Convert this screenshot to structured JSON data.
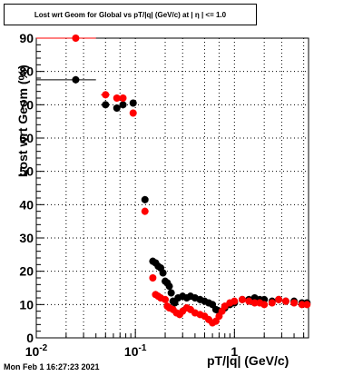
{
  "title": "Lost wrt Geom for Global vs pT/|q| (GeV/c) at |  η  | <= 1.0",
  "timestamp": "Mon Feb  1 16:27:23 2021",
  "chart_data": {
    "type": "scatter",
    "xlabel": "pT/|q| (GeV/c)",
    "ylabel": "Lost wrt Geom (%)",
    "xscale": "log",
    "xlim": [
      0.01,
      5.6
    ],
    "ylim": [
      0,
      90
    ],
    "x_tick_labels": [
      "10^-2",
      "10^-1",
      "1"
    ],
    "y_tick_labels": [
      "0",
      "10",
      "20",
      "30",
      "40",
      "50",
      "60",
      "70",
      "80",
      "90"
    ],
    "grid": true,
    "series": [
      {
        "color": "#000000",
        "points": [
          {
            "x": 0.025,
            "y": 77.5,
            "xerr": [
              0.01,
              0.04
            ]
          },
          {
            "x": 0.05,
            "y": 70.0,
            "xerr": [
              0.045,
              0.055
            ]
          },
          {
            "x": 0.065,
            "y": 69.0,
            "xerr": [
              0.06,
              0.07
            ]
          },
          {
            "x": 0.075,
            "y": 70.0,
            "xerr": [
              0.07,
              0.08
            ]
          },
          {
            "x": 0.095,
            "y": 70.5,
            "xerr": [
              0.09,
              0.1
            ]
          },
          {
            "x": 0.125,
            "y": 41.5
          },
          {
            "x": 0.15,
            "y": 23.0
          },
          {
            "x": 0.16,
            "y": 22.5
          },
          {
            "x": 0.17,
            "y": 21.5
          },
          {
            "x": 0.18,
            "y": 21.0
          },
          {
            "x": 0.19,
            "y": 19.5
          },
          {
            "x": 0.2,
            "y": 17.0
          },
          {
            "x": 0.21,
            "y": 16.5
          },
          {
            "x": 0.22,
            "y": 15.5
          },
          {
            "x": 0.23,
            "y": 13.5
          },
          {
            "x": 0.24,
            "y": 11.0
          },
          {
            "x": 0.25,
            "y": 10.5
          },
          {
            "x": 0.27,
            "y": 12.0
          },
          {
            "x": 0.3,
            "y": 12.5
          },
          {
            "x": 0.33,
            "y": 12.0
          },
          {
            "x": 0.36,
            "y": 12.5
          },
          {
            "x": 0.4,
            "y": 12.0
          },
          {
            "x": 0.45,
            "y": 11.5
          },
          {
            "x": 0.5,
            "y": 11.0
          },
          {
            "x": 0.55,
            "y": 10.5
          },
          {
            "x": 0.6,
            "y": 10.0
          },
          {
            "x": 0.65,
            "y": 8.5
          },
          {
            "x": 0.7,
            "y": 8.0
          },
          {
            "x": 0.8,
            "y": 9.0
          },
          {
            "x": 0.9,
            "y": 10.0
          },
          {
            "x": 1.0,
            "y": 10.5
          },
          {
            "x": 1.2,
            "y": 11.5
          },
          {
            "x": 1.4,
            "y": 11.5
          },
          {
            "x": 1.6,
            "y": 12.0
          },
          {
            "x": 1.8,
            "y": 11.5
          },
          {
            "x": 2.0,
            "y": 11.5
          },
          {
            "x": 2.4,
            "y": 11.0
          },
          {
            "x": 2.8,
            "y": 11.5
          },
          {
            "x": 3.3,
            "y": 11.0
          },
          {
            "x": 4.0,
            "y": 11.0
          },
          {
            "x": 4.8,
            "y": 10.5
          },
          {
            "x": 5.4,
            "y": 10.5
          }
        ]
      },
      {
        "color": "#ff0000",
        "points": [
          {
            "x": 0.025,
            "y": 90.0,
            "xerr": [
              0.01,
              0.04
            ]
          },
          {
            "x": 0.05,
            "y": 73.0,
            "xerr": [
              0.045,
              0.055
            ]
          },
          {
            "x": 0.065,
            "y": 72.0,
            "xerr": [
              0.06,
              0.07
            ]
          },
          {
            "x": 0.075,
            "y": 72.0,
            "xerr": [
              0.07,
              0.08
            ]
          },
          {
            "x": 0.095,
            "y": 67.5,
            "xerr": [
              0.09,
              0.1
            ]
          },
          {
            "x": 0.125,
            "y": 38.0
          },
          {
            "x": 0.15,
            "y": 18.0
          },
          {
            "x": 0.16,
            "y": 13.0
          },
          {
            "x": 0.17,
            "y": 12.5
          },
          {
            "x": 0.18,
            "y": 12.0
          },
          {
            "x": 0.2,
            "y": 11.5
          },
          {
            "x": 0.21,
            "y": 9.5
          },
          {
            "x": 0.22,
            "y": 9.0
          },
          {
            "x": 0.24,
            "y": 8.5
          },
          {
            "x": 0.26,
            "y": 7.5
          },
          {
            "x": 0.28,
            "y": 7.0
          },
          {
            "x": 0.3,
            "y": 8.0
          },
          {
            "x": 0.33,
            "y": 9.0
          },
          {
            "x": 0.36,
            "y": 8.5
          },
          {
            "x": 0.4,
            "y": 7.5
          },
          {
            "x": 0.45,
            "y": 7.0
          },
          {
            "x": 0.5,
            "y": 6.5
          },
          {
            "x": 0.55,
            "y": 5.5
          },
          {
            "x": 0.6,
            "y": 4.5
          },
          {
            "x": 0.65,
            "y": 5.0
          },
          {
            "x": 0.7,
            "y": 6.5
          },
          {
            "x": 0.75,
            "y": 8.0
          },
          {
            "x": 0.8,
            "y": 9.5
          },
          {
            "x": 0.9,
            "y": 10.5
          },
          {
            "x": 1.0,
            "y": 11.0
          },
          {
            "x": 1.2,
            "y": 11.5
          },
          {
            "x": 1.4,
            "y": 11.0
          },
          {
            "x": 1.6,
            "y": 10.5
          },
          {
            "x": 1.8,
            "y": 10.5
          },
          {
            "x": 2.0,
            "y": 10.0
          },
          {
            "x": 2.4,
            "y": 10.5
          },
          {
            "x": 2.8,
            "y": 11.5
          },
          {
            "x": 3.3,
            "y": 11.0
          },
          {
            "x": 4.0,
            "y": 10.5
          },
          {
            "x": 4.8,
            "y": 10.0
          },
          {
            "x": 5.4,
            "y": 10.0
          }
        ]
      }
    ]
  }
}
